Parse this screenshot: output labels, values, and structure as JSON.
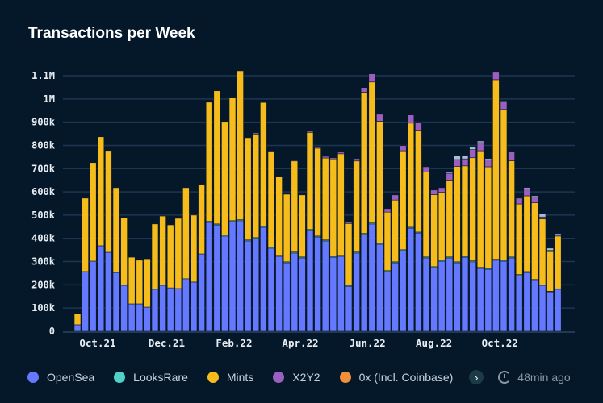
{
  "chart_data": {
    "type": "bar",
    "stacked": true,
    "title": "Transactions per Week",
    "xlabel": "",
    "ylabel": "",
    "ylim": [
      0,
      1150000
    ],
    "y_ticks": [
      {
        "value": 0,
        "label": "0"
      },
      {
        "value": 100000,
        "label": "100k"
      },
      {
        "value": 200000,
        "label": "200k"
      },
      {
        "value": 300000,
        "label": "300k"
      },
      {
        "value": 400000,
        "label": "400k"
      },
      {
        "value": 500000,
        "label": "500k"
      },
      {
        "value": 600000,
        "label": "600k"
      },
      {
        "value": 700000,
        "label": "700k"
      },
      {
        "value": 800000,
        "label": "800k"
      },
      {
        "value": 900000,
        "label": "900k"
      },
      {
        "value": 1000000,
        "label": "1M"
      },
      {
        "value": 1100000,
        "label": "1.1M"
      }
    ],
    "x_ticks": [
      {
        "label": "Oct.21",
        "at_week": 2.6
      },
      {
        "label": "Dec.21",
        "at_week": 11.5
      },
      {
        "label": "Feb.22",
        "at_week": 20.2
      },
      {
        "label": "Apr.22",
        "at_week": 28.75
      },
      {
        "label": "Jun.22",
        "at_week": 37.4
      },
      {
        "label": "Aug.22",
        "at_week": 46
      },
      {
        "label": "Oct.22",
        "at_week": 54.5
      }
    ],
    "grid": true,
    "legend_position": "bottom",
    "unit": "thousand transactions",
    "series": [
      {
        "name": "OpenSea",
        "color": "#6479ff",
        "values": [
          28,
          257,
          302,
          368,
          340,
          253,
          198,
          118,
          118,
          104,
          181,
          198,
          187,
          184,
          226,
          212,
          333,
          469,
          458,
          410,
          472,
          476,
          389,
          399,
          448,
          358,
          323,
          295,
          337,
          316,
          434,
          406,
          389,
          319,
          323,
          194,
          337,
          417,
          462,
          375,
          257,
          295,
          347,
          444,
          423,
          316,
          274,
          302,
          316,
          295,
          319,
          299,
          271,
          267,
          306,
          302,
          316,
          240,
          253,
          219,
          198,
          170,
          181
        ]
      },
      {
        "name": "LooksRare",
        "color": "#4fd1c5",
        "values": [
          0,
          0,
          0,
          0,
          0,
          0,
          0,
          0,
          0,
          0,
          0,
          0,
          0,
          0,
          0,
          0,
          0,
          4,
          4,
          4,
          4,
          4,
          4,
          4,
          4,
          4,
          4,
          4,
          4,
          4,
          4,
          4,
          4,
          4,
          4,
          4,
          4,
          4,
          4,
          4,
          4,
          4,
          4,
          4,
          4,
          4,
          4,
          4,
          4,
          4,
          4,
          4,
          4,
          4,
          4,
          4,
          4,
          4,
          4,
          4,
          2,
          2,
          2
        ]
      },
      {
        "name": "Mints",
        "color": "#f5bc1c",
        "values": [
          48,
          316,
          424,
          469,
          438,
          365,
          292,
          201,
          188,
          208,
          281,
          298,
          271,
          302,
          392,
          288,
          299,
          513,
          573,
          489,
          531,
          641,
          440,
          446,
          533,
          413,
          337,
          291,
          392,
          267,
          418,
          378,
          353,
          419,
          437,
          266,
          392,
          608,
          607,
          525,
          252,
          266,
          426,
          448,
          438,
          366,
          310,
          292,
          330,
          410,
          389,
          444,
          502,
          437,
          773,
          649,
          414,
          304,
          326,
          330,
          284,
          171,
          227
        ]
      },
      {
        "name": "X2Y2",
        "color": "#9b5fc0",
        "values": [
          0,
          0,
          0,
          0,
          0,
          0,
          0,
          0,
          0,
          0,
          0,
          0,
          0,
          0,
          0,
          0,
          0,
          0,
          0,
          0,
          0,
          0,
          0,
          5,
          5,
          3,
          3,
          0,
          3,
          0,
          5,
          7,
          7,
          5,
          7,
          5,
          10,
          20,
          35,
          30,
          15,
          22,
          22,
          35,
          35,
          22,
          20,
          20,
          30,
          30,
          30,
          35,
          35,
          30,
          35,
          35,
          40,
          25,
          30,
          25,
          8,
          5,
          5
        ]
      },
      {
        "name": "0x (Incl. Coinbase)",
        "color": "#f28f3b",
        "values": [
          0,
          0,
          0,
          0,
          0,
          0,
          0,
          0,
          0,
          0,
          0,
          0,
          0,
          0,
          0,
          0,
          0,
          0,
          0,
          0,
          0,
          0,
          0,
          0,
          0,
          0,
          0,
          0,
          0,
          0,
          0,
          0,
          0,
          0,
          0,
          0,
          0,
          0,
          0,
          0,
          0,
          0,
          0,
          0,
          0,
          0,
          0,
          0,
          0,
          0,
          0,
          0,
          0,
          0,
          0,
          0,
          0,
          0,
          0,
          0,
          0,
          0,
          0
        ]
      },
      {
        "name": "",
        "color": "#a9bcd8",
        "values": [
          0,
          0,
          0,
          0,
          0,
          0,
          0,
          0,
          0,
          0,
          0,
          0,
          0,
          0,
          0,
          0,
          0,
          0,
          0,
          0,
          0,
          0,
          0,
          0,
          0,
          0,
          0,
          0,
          0,
          0,
          0,
          0,
          0,
          0,
          0,
          0,
          0,
          0,
          0,
          0,
          0,
          0,
          0,
          0,
          0,
          0,
          0,
          0,
          8,
          18,
          15,
          10,
          7,
          5,
          0,
          3,
          0,
          0,
          5,
          5,
          15,
          10,
          5
        ]
      }
    ]
  },
  "header": {
    "title": "Transactions per Week"
  },
  "legend": {
    "items": [
      {
        "label": "OpenSea",
        "color": "#6479ff"
      },
      {
        "label": "LooksRare",
        "color": "#4fd1c5"
      },
      {
        "label": "Mints",
        "color": "#f5bc1c"
      },
      {
        "label": "X2Y2",
        "color": "#9b5fc0"
      },
      {
        "label": "0x (Incl. Coinbase)",
        "color": "#f28f3b"
      }
    ],
    "more_icon": "chevron-right-icon",
    "updated": "48min ago",
    "updated_icon": "clock-refresh-icon"
  }
}
